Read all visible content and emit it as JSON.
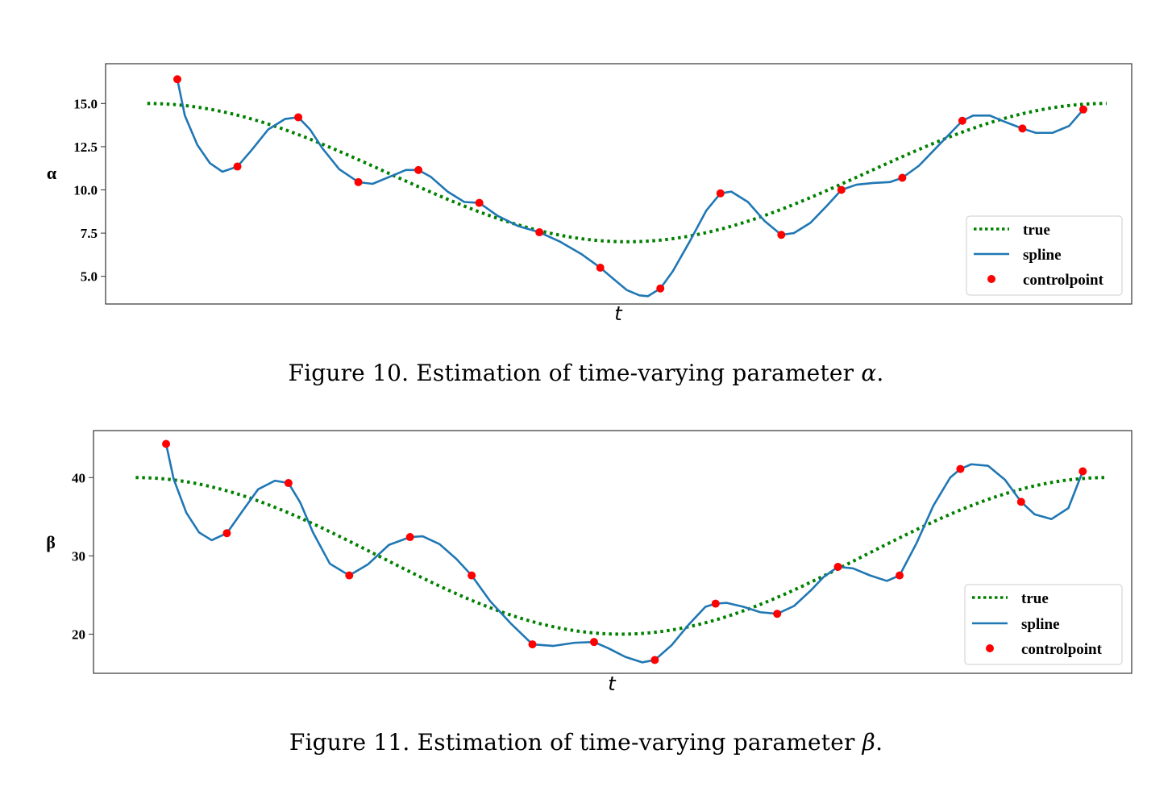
{
  "chart_data": [
    {
      "type": "line",
      "ylabel": "α",
      "xlabel": "t",
      "ylim": [
        3.4,
        17.3
      ],
      "xlim": [
        -0.5,
        11.8
      ],
      "yticks": [
        5.0,
        7.5,
        10.0,
        12.5,
        15.0
      ],
      "yticklabels": [
        "5.0",
        "7.5",
        "10.0",
        "12.5",
        "15.0"
      ],
      "legend": {
        "position": "lower-right",
        "entries": [
          "true",
          "spline",
          "controlpoint"
        ]
      },
      "true_curve": {
        "name": "true",
        "x_start": 0,
        "x_end": 11.5,
        "base": 11.0,
        "amplitude": 4.0,
        "period": 11.5
      },
      "control_points": {
        "name": "controlpoint",
        "x": [
          0.36,
          1.08,
          1.81,
          2.53,
          3.25,
          3.98,
          4.7,
          5.43,
          6.15,
          6.87,
          7.6,
          8.32,
          9.05,
          9.77,
          10.49,
          11.22
        ],
        "y": [
          16.4,
          11.35,
          14.2,
          10.45,
          11.15,
          9.25,
          7.55,
          5.5,
          4.3,
          9.8,
          7.4,
          10.0,
          10.7,
          14.0,
          13.55,
          14.65
        ]
      },
      "spline": {
        "name": "spline",
        "x": [
          0.36,
          0.45,
          0.6,
          0.75,
          0.9,
          1.08,
          1.25,
          1.45,
          1.65,
          1.81,
          1.95,
          2.1,
          2.3,
          2.53,
          2.7,
          2.9,
          3.1,
          3.25,
          3.4,
          3.6,
          3.8,
          3.98,
          4.2,
          4.45,
          4.7,
          4.95,
          5.2,
          5.43,
          5.6,
          5.75,
          5.9,
          6.0,
          6.15,
          6.3,
          6.5,
          6.7,
          6.87,
          7.0,
          7.2,
          7.4,
          7.6,
          7.75,
          7.95,
          8.15,
          8.32,
          8.5,
          8.7,
          8.9,
          9.05,
          9.25,
          9.45,
          9.65,
          9.77,
          9.9,
          10.1,
          10.3,
          10.49,
          10.65,
          10.85,
          11.05,
          11.22
        ],
        "y": [
          16.4,
          14.3,
          12.6,
          11.55,
          11.05,
          11.35,
          12.3,
          13.5,
          14.1,
          14.2,
          13.5,
          12.4,
          11.2,
          10.45,
          10.35,
          10.75,
          11.15,
          11.15,
          10.75,
          9.9,
          9.3,
          9.25,
          8.5,
          7.9,
          7.55,
          7.0,
          6.3,
          5.5,
          4.8,
          4.2,
          3.9,
          3.85,
          4.3,
          5.3,
          7.0,
          8.8,
          9.8,
          9.9,
          9.3,
          8.2,
          7.4,
          7.5,
          8.1,
          9.1,
          10.0,
          10.3,
          10.4,
          10.45,
          10.7,
          11.4,
          12.4,
          13.4,
          14.0,
          14.3,
          14.3,
          13.9,
          13.55,
          13.3,
          13.3,
          13.7,
          14.65
        ]
      }
    },
    {
      "type": "line",
      "ylabel": "β",
      "xlabel": "t",
      "ylim": [
        15,
        46
      ],
      "xlim": [
        -0.5,
        11.8
      ],
      "yticks": [
        20,
        30,
        40
      ],
      "yticklabels": [
        "20",
        "30",
        "40"
      ],
      "legend": {
        "position": "lower-right",
        "entries": [
          "true",
          "spline",
          "controlpoint"
        ]
      },
      "true_curve": {
        "name": "true",
        "x_start": 0,
        "x_end": 11.5,
        "base": 30.0,
        "amplitude": 10.0,
        "period": 11.5
      },
      "control_points": {
        "name": "controlpoint",
        "x": [
          0.36,
          1.08,
          1.81,
          2.53,
          3.25,
          3.98,
          4.7,
          5.43,
          6.15,
          6.87,
          7.6,
          8.32,
          9.05,
          9.77,
          10.49,
          11.22
        ],
        "y": [
          44.3,
          32.9,
          39.3,
          27.5,
          32.4,
          27.5,
          18.7,
          19.0,
          16.7,
          23.9,
          22.6,
          28.6,
          27.5,
          41.1,
          36.9,
          40.8
        ]
      },
      "spline": {
        "name": "spline",
        "x": [
          0.36,
          0.45,
          0.6,
          0.75,
          0.9,
          1.08,
          1.25,
          1.45,
          1.65,
          1.81,
          1.95,
          2.1,
          2.3,
          2.53,
          2.75,
          3.0,
          3.25,
          3.4,
          3.6,
          3.8,
          3.98,
          4.2,
          4.45,
          4.7,
          4.95,
          5.2,
          5.43,
          5.6,
          5.8,
          6.0,
          6.15,
          6.35,
          6.55,
          6.75,
          6.87,
          7.0,
          7.2,
          7.4,
          7.6,
          7.8,
          8.0,
          8.15,
          8.32,
          8.5,
          8.7,
          8.9,
          9.05,
          9.25,
          9.45,
          9.65,
          9.77,
          9.9,
          10.1,
          10.3,
          10.49,
          10.65,
          10.85,
          11.05,
          11.22
        ],
        "y": [
          44.3,
          39.8,
          35.5,
          33.0,
          32.0,
          32.9,
          35.5,
          38.5,
          39.6,
          39.3,
          36.8,
          33.0,
          29.0,
          27.5,
          28.9,
          31.4,
          32.4,
          32.5,
          31.5,
          29.6,
          27.5,
          24.2,
          21.3,
          18.7,
          18.5,
          18.9,
          19.0,
          18.2,
          17.1,
          16.4,
          16.7,
          18.6,
          21.2,
          23.5,
          23.9,
          24.0,
          23.5,
          22.8,
          22.6,
          23.6,
          25.6,
          27.3,
          28.6,
          28.4,
          27.5,
          26.8,
          27.5,
          31.6,
          36.4,
          40.0,
          41.1,
          41.7,
          41.5,
          39.7,
          36.9,
          35.3,
          34.7,
          36.1,
          40.8
        ]
      }
    }
  ],
  "captions": {
    "fig10_prefix": "Figure 10.  Estimation of time-varying parameter ",
    "fig10_symbol": "α",
    "fig10_suffix": ".",
    "fig11_prefix": "Figure 11.  Estimation of time-varying parameter ",
    "fig11_symbol": "β",
    "fig11_suffix": "."
  },
  "colors": {
    "true": "#008000",
    "spline": "#1f77b4",
    "controlpoint": "#ff0000",
    "axes": "#333333",
    "legend_border": "#cccccc"
  }
}
